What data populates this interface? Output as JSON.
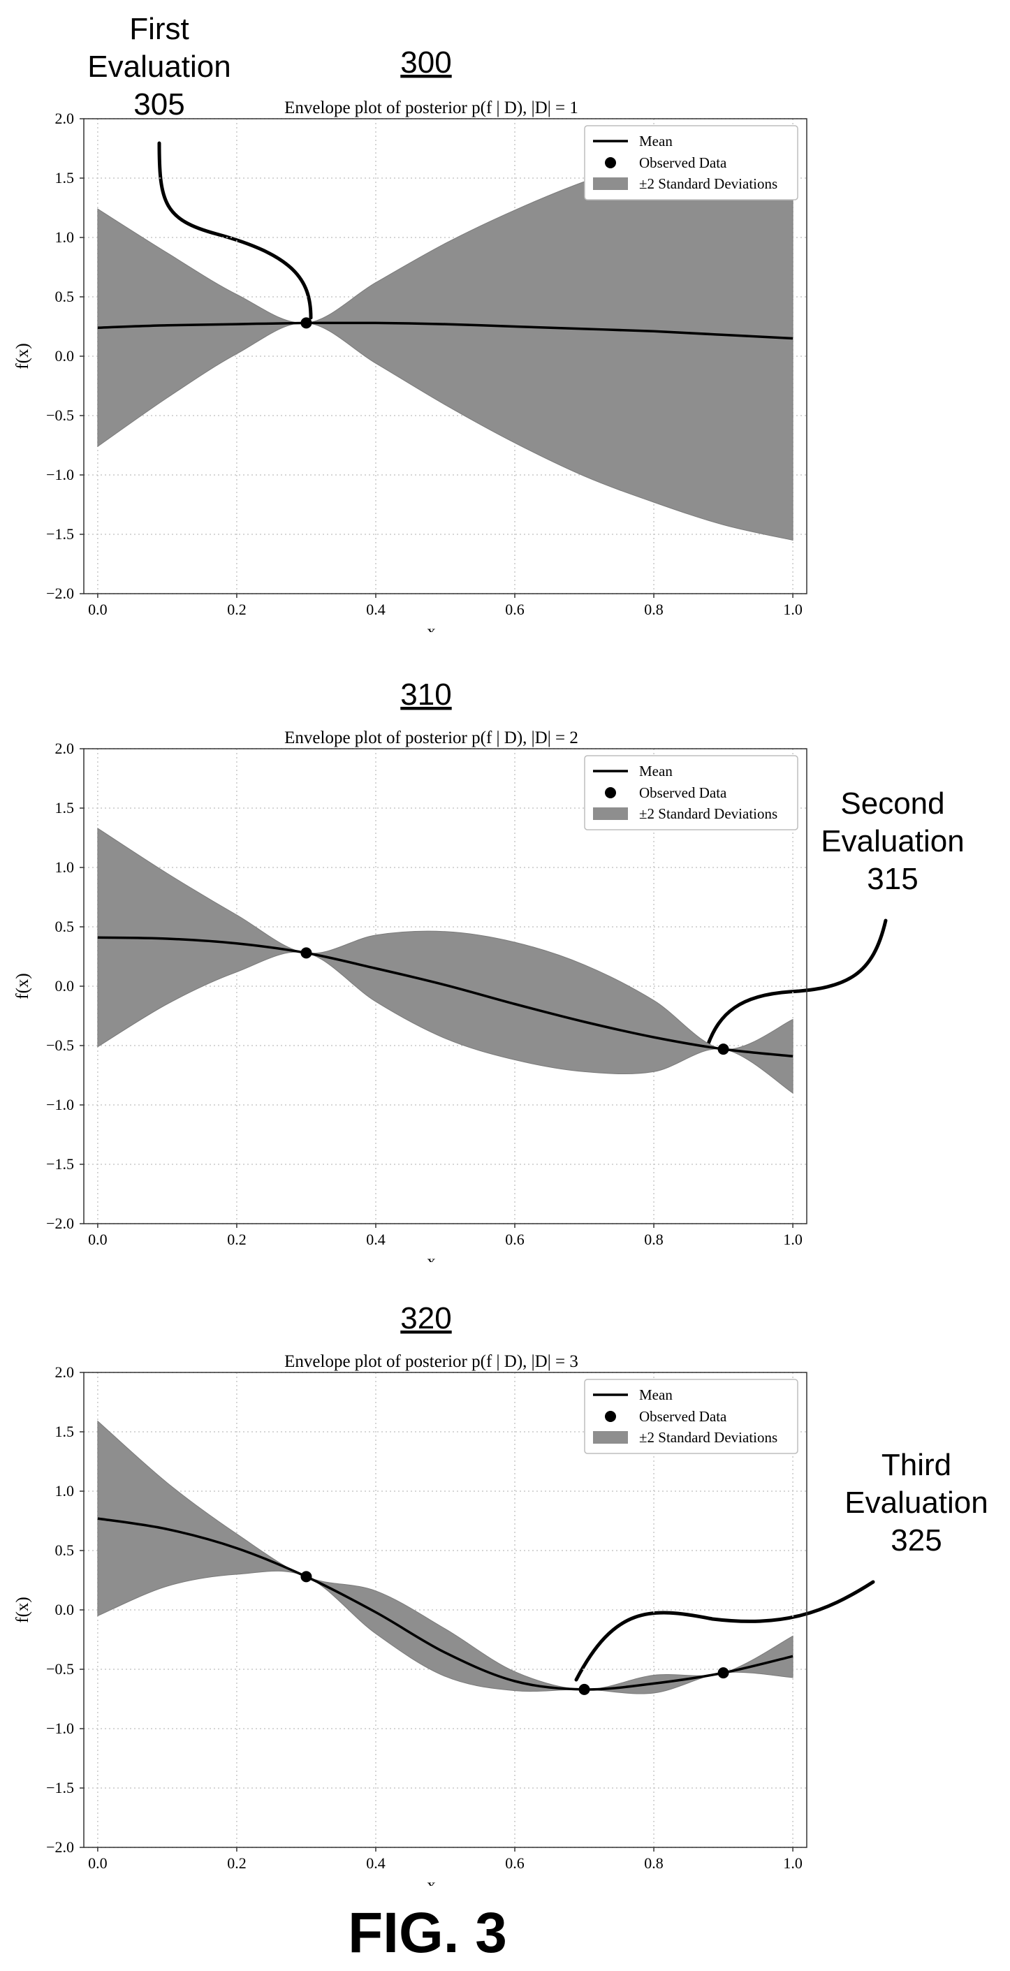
{
  "figure_label": "FIG. 3",
  "annotations": {
    "first": [
      "First",
      "Evaluation",
      "305"
    ],
    "second": [
      "Second",
      "Evaluation",
      "315"
    ],
    "third": [
      "Third",
      "Evaluation",
      "325"
    ]
  },
  "chart_data": [
    {
      "type": "line",
      "ref": "300",
      "title": "Envelope plot of posterior p(f | D), |D| = 1",
      "xlabel": "x",
      "ylabel": "f(x)",
      "xlim": [
        -0.02,
        1.02
      ],
      "ylim": [
        -2.0,
        2.0
      ],
      "xticks": [
        "0.0",
        "0.2",
        "0.4",
        "0.6",
        "0.8",
        "1.0"
      ],
      "yticks": [
        "2.0",
        "1.5",
        "1.0",
        "0.5",
        "0.0",
        "−0.5",
        "−1.0",
        "−1.5",
        "−2.0"
      ],
      "grid": true,
      "legend_position": "top-right",
      "legend": [
        "Mean",
        "Observed Data",
        "±2 Standard Deviations"
      ],
      "x": [
        0.0,
        0.1,
        0.2,
        0.3,
        0.4,
        0.5,
        0.6,
        0.7,
        0.8,
        0.9,
        1.0
      ],
      "mean": [
        0.24,
        0.26,
        0.27,
        0.28,
        0.28,
        0.27,
        0.25,
        0.23,
        0.21,
        0.18,
        0.15
      ],
      "upper": [
        1.24,
        0.87,
        0.52,
        0.28,
        0.62,
        0.95,
        1.23,
        1.47,
        1.65,
        1.78,
        1.85
      ],
      "lower": [
        -0.76,
        -0.35,
        0.02,
        0.28,
        -0.06,
        -0.41,
        -0.73,
        -1.01,
        -1.23,
        -1.42,
        -1.55
      ],
      "observed": [
        [
          0.3,
          0.28
        ]
      ]
    },
    {
      "type": "line",
      "ref": "310",
      "title": "Envelope plot of posterior p(f | D), |D| = 2",
      "xlabel": "x",
      "ylabel": "f(x)",
      "xlim": [
        -0.02,
        1.02
      ],
      "ylim": [
        -2.0,
        2.0
      ],
      "xticks": [
        "0.0",
        "0.2",
        "0.4",
        "0.6",
        "0.8",
        "1.0"
      ],
      "yticks": [
        "2.0",
        "1.5",
        "1.0",
        "0.5",
        "0.0",
        "−0.5",
        "−1.0",
        "−1.5",
        "−2.0"
      ],
      "grid": true,
      "legend_position": "top-right",
      "legend": [
        "Mean",
        "Observed Data",
        "±2 Standard Deviations"
      ],
      "x": [
        0.0,
        0.1,
        0.2,
        0.3,
        0.4,
        0.5,
        0.6,
        0.7,
        0.8,
        0.9,
        1.0
      ],
      "mean": [
        0.41,
        0.4,
        0.36,
        0.28,
        0.15,
        0.01,
        -0.15,
        -0.3,
        -0.43,
        -0.53,
        -0.59
      ],
      "upper": [
        1.33,
        0.95,
        0.6,
        0.28,
        0.43,
        0.46,
        0.37,
        0.18,
        -0.12,
        -0.53,
        -0.28
      ],
      "lower": [
        -0.51,
        -0.15,
        0.12,
        0.28,
        -0.13,
        -0.44,
        -0.62,
        -0.72,
        -0.72,
        -0.53,
        -0.9
      ],
      "observed": [
        [
          0.3,
          0.28
        ],
        [
          0.9,
          -0.53
        ]
      ]
    },
    {
      "type": "line",
      "ref": "320",
      "title": "Envelope plot of posterior p(f | D), |D| = 3",
      "xlabel": "x",
      "ylabel": "f(x)",
      "xlim": [
        -0.02,
        1.02
      ],
      "ylim": [
        -2.0,
        2.0
      ],
      "xticks": [
        "0.0",
        "0.2",
        "0.4",
        "0.6",
        "0.8",
        "1.0"
      ],
      "yticks": [
        "2.0",
        "1.5",
        "1.0",
        "0.5",
        "0.0",
        "−0.5",
        "−1.0",
        "−1.5",
        "−2.0"
      ],
      "grid": true,
      "legend_position": "top-right",
      "legend": [
        "Mean",
        "Observed Data",
        "±2 Standard Deviations"
      ],
      "x": [
        0.0,
        0.1,
        0.2,
        0.3,
        0.4,
        0.5,
        0.6,
        0.7,
        0.8,
        0.9,
        1.0
      ],
      "mean": [
        0.77,
        0.68,
        0.52,
        0.28,
        -0.02,
        -0.36,
        -0.6,
        -0.67,
        -0.62,
        -0.53,
        -0.39
      ],
      "upper": [
        1.59,
        1.07,
        0.64,
        0.28,
        0.16,
        -0.16,
        -0.52,
        -0.67,
        -0.55,
        -0.53,
        -0.22
      ],
      "lower": [
        -0.05,
        0.2,
        0.3,
        0.28,
        -0.2,
        -0.56,
        -0.68,
        -0.67,
        -0.7,
        -0.53,
        -0.57
      ],
      "observed": [
        [
          0.3,
          0.28
        ],
        [
          0.7,
          -0.67
        ],
        [
          0.9,
          -0.53
        ]
      ]
    }
  ]
}
